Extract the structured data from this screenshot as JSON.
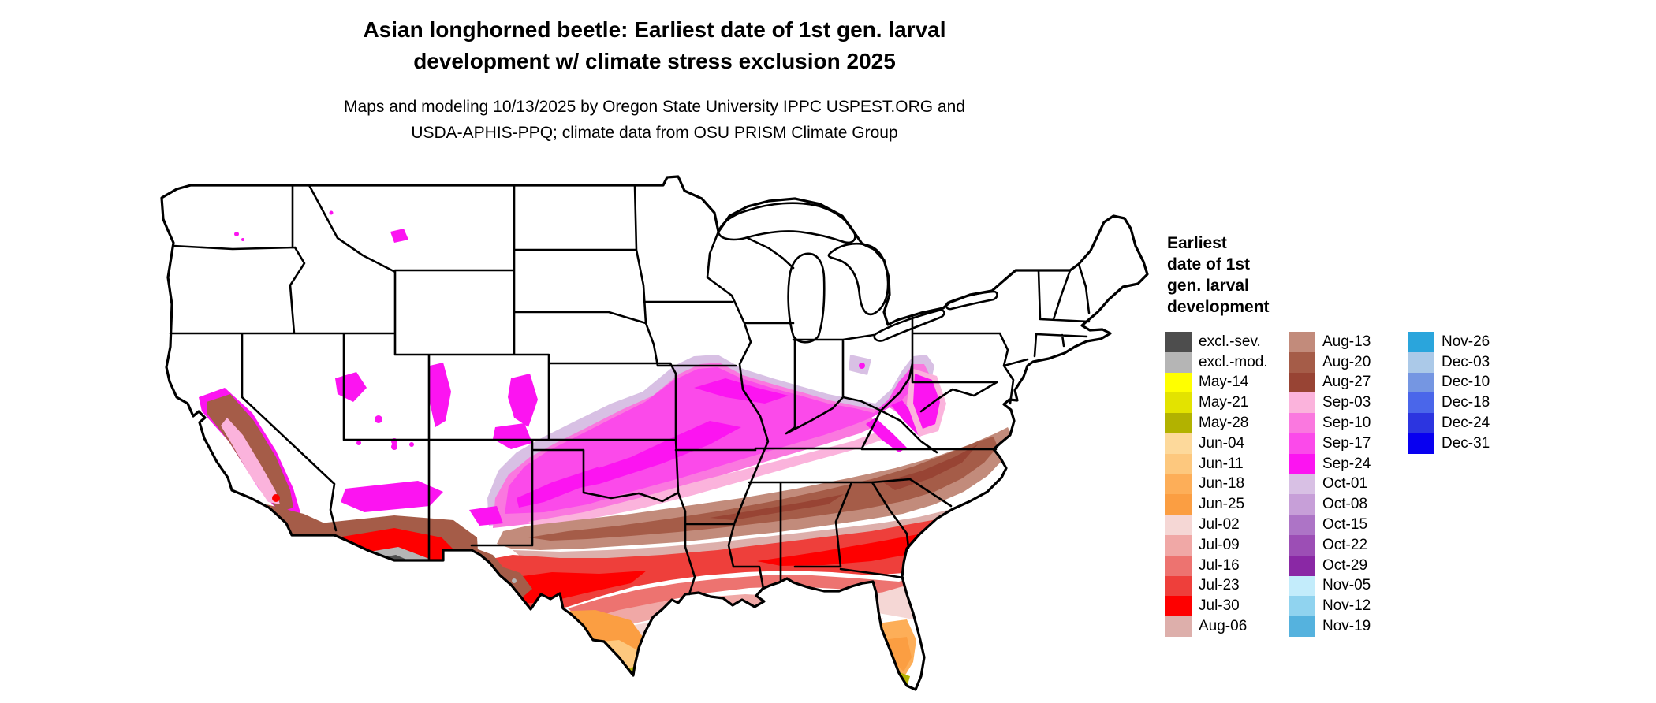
{
  "title": "Asian longhorned beetle: Earliest date of 1st gen. larval\ndevelopment w/ climate stress exclusion 2025",
  "subtitle": "Maps and modeling 10/13/2025 by Oregon State University IPPC USPEST.ORG and\nUSDA-APHIS-PPQ; climate data from OSU PRISM Climate Group",
  "legend": {
    "title": "Earliest\ndate of 1st\ngen. larval\ndevelopment",
    "colors": {
      "excl_sev": "#4d4d4d",
      "excl_mod": "#b5b5b5",
      "may14": "#ffff00",
      "may21": "#e3e300",
      "may28": "#b2b200",
      "jun04": "#fdd99b",
      "jun11": "#fdc87e",
      "jun18": "#fdae58",
      "jun25": "#fb9e42",
      "jul02": "#f5d7d5",
      "jul09": "#f0a8a6",
      "jul16": "#ed7370",
      "jul23": "#ee3f3b",
      "jul30": "#fe0000",
      "aug06": "#ddafab",
      "aug13": "#c28b7b",
      "aug20": "#a55c48",
      "aug27": "#984434",
      "sep03": "#fbb3dc",
      "sep10": "#fa78df",
      "sep17": "#fb4aea",
      "sep24": "#fc14f1",
      "oct01": "#d8c0e4",
      "oct08": "#c79fd8",
      "oct15": "#ad74c6",
      "oct22": "#9c4eb5",
      "oct29": "#8a28a5",
      "nov05": "#c3ecfb",
      "nov12": "#90d3ef",
      "nov19": "#55b2de",
      "nov26": "#2aa5dc",
      "dec03": "#abc9e8",
      "dec10": "#7596e2",
      "dec18": "#4a66ea",
      "dec24": "#2c35e0",
      "dec31": "#0800f0"
    },
    "columns": [
      [
        {
          "key": "excl_sev",
          "label": "excl.-sev."
        },
        {
          "key": "excl_mod",
          "label": "excl.-mod."
        },
        {
          "key": "may14",
          "label": "May-14"
        },
        {
          "key": "may21",
          "label": "May-21"
        },
        {
          "key": "may28",
          "label": "May-28"
        },
        {
          "key": "jun04",
          "label": "Jun-04"
        },
        {
          "key": "jun11",
          "label": "Jun-11"
        },
        {
          "key": "jun18",
          "label": "Jun-18"
        },
        {
          "key": "jun25",
          "label": "Jun-25"
        },
        {
          "key": "jul02",
          "label": "Jul-02"
        },
        {
          "key": "jul09",
          "label": "Jul-09"
        },
        {
          "key": "jul16",
          "label": "Jul-16"
        },
        {
          "key": "jul23",
          "label": "Jul-23"
        },
        {
          "key": "jul30",
          "label": "Jul-30"
        },
        {
          "key": "aug06",
          "label": "Aug-06"
        }
      ],
      [
        {
          "key": "aug13",
          "label": "Aug-13"
        },
        {
          "key": "aug20",
          "label": "Aug-20"
        },
        {
          "key": "aug27",
          "label": "Aug-27"
        },
        {
          "key": "sep03",
          "label": "Sep-03"
        },
        {
          "key": "sep10",
          "label": "Sep-10"
        },
        {
          "key": "sep17",
          "label": "Sep-17"
        },
        {
          "key": "sep24",
          "label": "Sep-24"
        },
        {
          "key": "oct01",
          "label": "Oct-01"
        },
        {
          "key": "oct08",
          "label": "Oct-08"
        },
        {
          "key": "oct15",
          "label": "Oct-15"
        },
        {
          "key": "oct22",
          "label": "Oct-22"
        },
        {
          "key": "oct29",
          "label": "Oct-29"
        },
        {
          "key": "nov05",
          "label": "Nov-05"
        },
        {
          "key": "nov12",
          "label": "Nov-12"
        },
        {
          "key": "nov19",
          "label": "Nov-19"
        }
      ],
      [
        {
          "key": "nov26",
          "label": "Nov-26"
        },
        {
          "key": "dec03",
          "label": "Dec-03"
        },
        {
          "key": "dec10",
          "label": "Dec-10"
        },
        {
          "key": "dec18",
          "label": "Dec-18"
        },
        {
          "key": "dec24",
          "label": "Dec-24"
        },
        {
          "key": "dec31",
          "label": "Dec-31"
        }
      ]
    ]
  }
}
